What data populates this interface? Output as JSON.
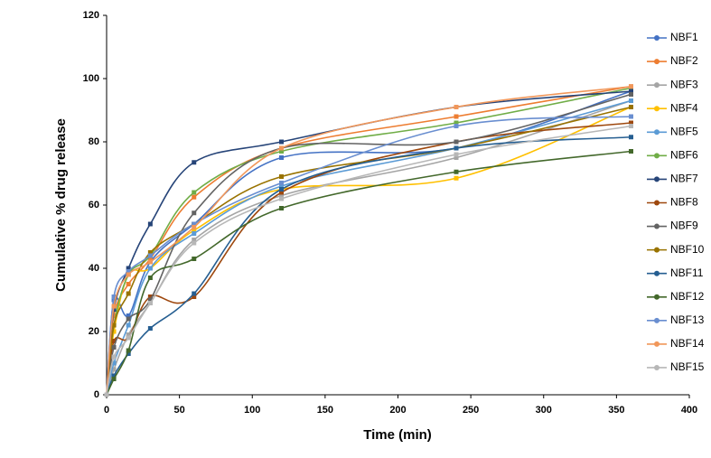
{
  "chart_data": {
    "type": "line",
    "x_label": "Time (min)",
    "y_label": "Cumulative % drug release",
    "x": [
      0,
      5,
      15,
      30,
      60,
      120,
      240,
      360
    ],
    "xlim": [
      0,
      400
    ],
    "xticks": [
      0,
      50,
      100,
      150,
      200,
      250,
      300,
      350,
      400
    ],
    "ylim": [
      0,
      120
    ],
    "yticks": [
      0,
      20,
      40,
      60,
      80,
      100,
      120
    ],
    "grid": false,
    "legend": "right",
    "smooth": true,
    "series": [
      {
        "name": "NBF1",
        "color": "#4472c4",
        "values": [
          0,
          30,
          25,
          42,
          54,
          75,
          78,
          96
        ]
      },
      {
        "name": "NBF2",
        "color": "#ed7d31",
        "values": [
          0,
          25,
          35,
          43,
          62.5,
          78,
          88,
          97.5
        ]
      },
      {
        "name": "NBF3",
        "color": "#a5a5a5",
        "values": [
          0,
          8,
          19,
          29,
          49,
          63,
          75,
          93
        ]
      },
      {
        "name": "NBF4",
        "color": "#ffc000",
        "values": [
          0,
          20,
          38,
          40,
          52,
          65,
          68.5,
          91
        ]
      },
      {
        "name": "NBF5",
        "color": "#5b9bd5",
        "values": [
          0,
          10,
          22,
          40,
          51,
          66,
          78,
          93
        ]
      },
      {
        "name": "NBF6",
        "color": "#70ad47",
        "values": [
          0,
          22,
          38,
          44,
          64,
          77,
          86,
          97
        ]
      },
      {
        "name": "NBF7",
        "color": "#264478",
        "values": [
          0,
          27,
          40,
          54,
          73.5,
          80,
          91,
          96
        ]
      },
      {
        "name": "NBF8",
        "color": "#9e480e",
        "values": [
          0,
          17,
          18,
          31,
          31,
          64,
          80,
          86
        ]
      },
      {
        "name": "NBF9",
        "color": "#636363",
        "values": [
          0,
          15,
          24,
          30,
          57.5,
          78,
          80,
          95
        ]
      },
      {
        "name": "NBF10",
        "color": "#997300",
        "values": [
          0,
          22,
          32,
          45,
          54,
          69,
          78,
          91
        ]
      },
      {
        "name": "NBF11",
        "color": "#255e91",
        "values": [
          0,
          6,
          13,
          21,
          32,
          65,
          78,
          81.5
        ]
      },
      {
        "name": "NBF12",
        "color": "#43682b",
        "values": [
          0,
          5,
          14,
          37,
          43,
          59,
          70.5,
          77
        ]
      },
      {
        "name": "NBF13",
        "color": "#698ed0",
        "values": [
          0,
          31,
          39,
          44,
          54,
          67,
          85,
          88
        ]
      },
      {
        "name": "NBF14",
        "color": "#f1975a",
        "values": [
          0,
          28,
          38,
          42,
          53,
          78,
          91,
          97.5
        ]
      },
      {
        "name": "NBF15",
        "color": "#b7b7b7",
        "values": [
          0,
          12,
          18,
          29,
          48,
          62,
          76,
          85
        ]
      }
    ]
  }
}
